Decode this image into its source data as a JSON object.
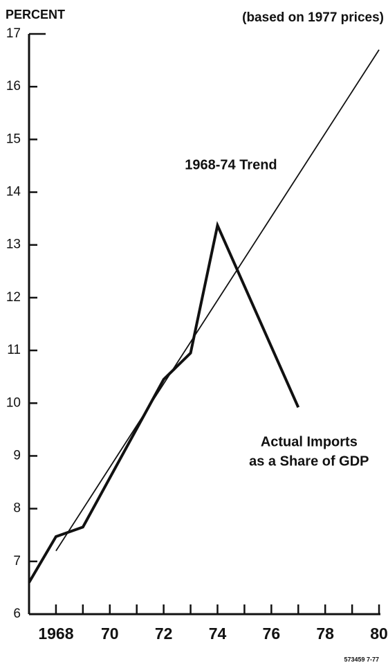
{
  "chart_data": {
    "type": "line",
    "y_axis_label": "PERCENT",
    "subtitle": "(based on 1977 prices)",
    "series": [
      {
        "x": [
          1967,
          1968,
          1969,
          1972,
          1973,
          1974,
          1977
        ],
        "values": [
          6.6,
          7.47,
          7.65,
          10.45,
          10.95,
          13.37,
          9.92
        ],
        "color": "#111111",
        "width": 4
      },
      {
        "x": [
          1968,
          1980
        ],
        "values": [
          7.2,
          16.7
        ],
        "color": "#111111",
        "width": 1.8
      }
    ],
    "annotations": [
      {
        "lines": [
          "1968-74 Trend"
        ],
        "x": 1974.5,
        "y": 14.5
      },
      {
        "lines": [
          "Actual Imports",
          "as a Share of GDP"
        ],
        "x": 1977.4,
        "y": 9.25
      }
    ],
    "xlim": [
      1967,
      1980.05
    ],
    "ylim": [
      6,
      17
    ],
    "yticks": [
      6,
      7,
      8,
      9,
      10,
      11,
      12,
      13,
      14,
      15,
      16,
      17
    ],
    "xticks": [
      {
        "value": 1968,
        "label": "1968"
      },
      {
        "value": 1970,
        "label": "70"
      },
      {
        "value": 1972,
        "label": "72"
      },
      {
        "value": 1974,
        "label": "74"
      },
      {
        "value": 1976,
        "label": "76"
      },
      {
        "value": 1978,
        "label": "78"
      },
      {
        "value": 1980,
        "label": "80"
      }
    ],
    "xminorticks": [
      1969,
      1971,
      1973,
      1975,
      1977,
      1979
    ],
    "footnote": "573459 7-77"
  }
}
